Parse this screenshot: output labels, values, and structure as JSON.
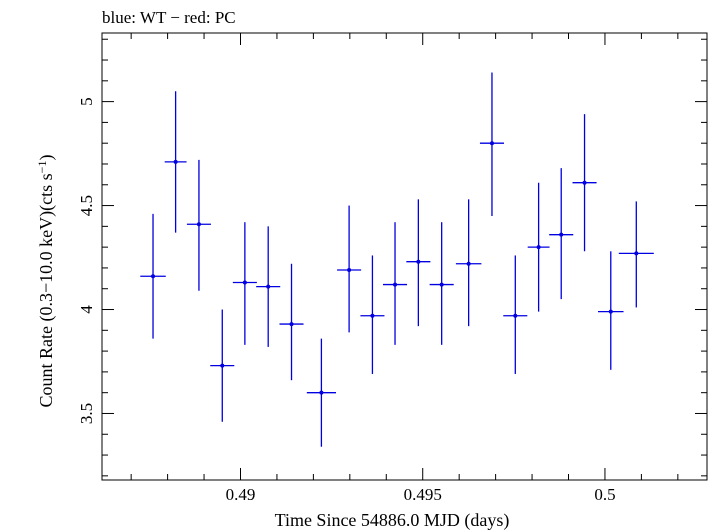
{
  "chart_data": {
    "type": "scatter",
    "title": "blue: WT − red: PC",
    "xlabel": "Time Since 54886.0 MJD (days)",
    "ylabel_main": "Count Rate (0.3−10.0 keV)(cts s",
    "ylabel_sup": "−1",
    "ylabel_close": ")",
    "xlim": [
      0.4862,
      0.5028
    ],
    "ylim": [
      3.18,
      5.33
    ],
    "x_ticks": [
      {
        "value": 0.49,
        "label": "0.49"
      },
      {
        "value": 0.495,
        "label": "0.495"
      },
      {
        "value": 0.5,
        "label": "0.5"
      }
    ],
    "x_minor_step": 0.001,
    "y_ticks": [
      {
        "value": 3.5,
        "label": "3.5"
      },
      {
        "value": 4.0,
        "label": "4"
      },
      {
        "value": 4.5,
        "label": "4.5"
      },
      {
        "value": 5.0,
        "label": "5"
      }
    ],
    "y_minor_step": 0.1,
    "series": [
      {
        "color": "#0000e0",
        "points": [
          {
            "x": 0.4876,
            "xerr": 0.00035,
            "y": 4.16,
            "ylo": 3.86,
            "yhi": 4.46
          },
          {
            "x": 0.48822,
            "xerr": 0.0003,
            "y": 4.71,
            "ylo": 4.37,
            "yhi": 5.05
          },
          {
            "x": 0.48886,
            "xerr": 0.00033,
            "y": 4.41,
            "ylo": 4.09,
            "yhi": 4.72
          },
          {
            "x": 0.4895,
            "xerr": 0.00033,
            "y": 3.73,
            "ylo": 3.46,
            "yhi": 4.0
          },
          {
            "x": 0.49012,
            "xerr": 0.00033,
            "y": 4.13,
            "ylo": 3.83,
            "yhi": 4.42
          },
          {
            "x": 0.49076,
            "xerr": 0.00033,
            "y": 4.11,
            "ylo": 3.82,
            "yhi": 4.4
          },
          {
            "x": 0.4914,
            "xerr": 0.00033,
            "y": 3.93,
            "ylo": 3.66,
            "yhi": 4.22
          },
          {
            "x": 0.49222,
            "xerr": 0.0004,
            "y": 3.6,
            "ylo": 3.34,
            "yhi": 3.86
          },
          {
            "x": 0.49298,
            "xerr": 0.00033,
            "y": 4.19,
            "ylo": 3.89,
            "yhi": 4.5
          },
          {
            "x": 0.49362,
            "xerr": 0.00033,
            "y": 3.97,
            "ylo": 3.69,
            "yhi": 4.26
          },
          {
            "x": 0.49424,
            "xerr": 0.00033,
            "y": 4.12,
            "ylo": 3.83,
            "yhi": 4.42
          },
          {
            "x": 0.49488,
            "xerr": 0.00033,
            "y": 4.23,
            "ylo": 3.92,
            "yhi": 4.53
          },
          {
            "x": 0.49552,
            "xerr": 0.00033,
            "y": 4.12,
            "ylo": 3.83,
            "yhi": 4.42
          },
          {
            "x": 0.49626,
            "xerr": 0.00035,
            "y": 4.22,
            "ylo": 3.92,
            "yhi": 4.53
          },
          {
            "x": 0.4969,
            "xerr": 0.00033,
            "y": 4.8,
            "ylo": 4.45,
            "yhi": 5.14
          },
          {
            "x": 0.49754,
            "xerr": 0.00033,
            "y": 3.97,
            "ylo": 3.69,
            "yhi": 4.26
          },
          {
            "x": 0.49818,
            "xerr": 0.0003,
            "y": 4.3,
            "ylo": 3.99,
            "yhi": 4.61
          },
          {
            "x": 0.4988,
            "xerr": 0.00033,
            "y": 4.36,
            "ylo": 4.05,
            "yhi": 4.68
          },
          {
            "x": 0.49944,
            "xerr": 0.00033,
            "y": 4.61,
            "ylo": 4.28,
            "yhi": 4.94
          },
          {
            "x": 0.50016,
            "xerr": 0.00035,
            "y": 3.99,
            "ylo": 3.71,
            "yhi": 4.28
          },
          {
            "x": 0.50086,
            "xerr": 0.00048,
            "y": 4.27,
            "ylo": 4.01,
            "yhi": 4.52
          }
        ]
      }
    ]
  }
}
